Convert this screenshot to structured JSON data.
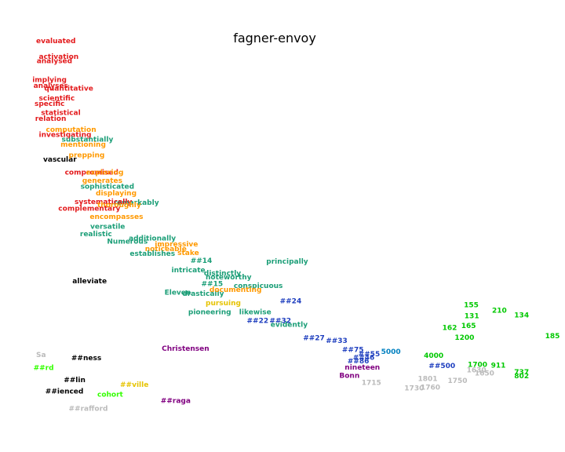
{
  "chart_data": {
    "type": "scatter",
    "title": "fagner-envoy",
    "xlabel": "",
    "ylabel": "",
    "axes_visible": false,
    "grid": false,
    "legend": "none",
    "xlim": [
      0,
      100
    ],
    "ylim": [
      0,
      100
    ],
    "colors": {
      "red": "#e31a1c",
      "orange": "#ff9900",
      "teal": "#1b9e77",
      "blue": "#1f3fbf",
      "black": "#000000",
      "gold": "#e6c300",
      "purple": "#800080",
      "cyan": "#0080c0",
      "gray": "#bbbbbb",
      "green": "#00c800",
      "lime": "#33ff00"
    },
    "points": [
      {
        "label": "evaluated",
        "x": 4.5,
        "y": 99.0,
        "color": "red"
      },
      {
        "label": "activation",
        "x": 5.0,
        "y": 95.0,
        "color": "red"
      },
      {
        "label": "analysed",
        "x": 4.6,
        "y": 93.8,
        "color": "red"
      },
      {
        "label": "implying",
        "x": 3.8,
        "y": 89.0,
        "color": "red"
      },
      {
        "label": "analyses",
        "x": 4.0,
        "y": 87.5,
        "color": "red"
      },
      {
        "label": "quantitative",
        "x": 6.0,
        "y": 86.8,
        "color": "red"
      },
      {
        "label": "scientific",
        "x": 5.0,
        "y": 84.2,
        "color": "red"
      },
      {
        "label": "specific",
        "x": 4.2,
        "y": 82.8,
        "color": "red"
      },
      {
        "label": "statistical",
        "x": 5.4,
        "y": 80.5,
        "color": "red"
      },
      {
        "label": "relation",
        "x": 4.3,
        "y": 79.0,
        "color": "red"
      },
      {
        "label": "computation",
        "x": 6.3,
        "y": 76.2,
        "color": "orange"
      },
      {
        "label": "investigating",
        "x": 5.0,
        "y": 74.8,
        "color": "red"
      },
      {
        "label": "substantially",
        "x": 9.2,
        "y": 73.6,
        "color": "teal"
      },
      {
        "label": "mentioning",
        "x": 9.0,
        "y": 72.3,
        "color": "orange"
      },
      {
        "label": "vascular",
        "x": 5.8,
        "y": 68.5,
        "color": "black"
      },
      {
        "label": "prepping",
        "x": 10.5,
        "y": 69.6,
        "color": "orange"
      },
      {
        "label": "compromised",
        "x": 9.8,
        "y": 65.2,
        "color": "red"
      },
      {
        "label": "exploring",
        "x": 13.7,
        "y": 65.2,
        "color": "orange"
      },
      {
        "label": "generates",
        "x": 13.0,
        "y": 63.0,
        "color": "orange"
      },
      {
        "label": "sophisticated",
        "x": 12.7,
        "y": 61.5,
        "color": "teal"
      },
      {
        "label": "displaying",
        "x": 15.5,
        "y": 59.8,
        "color": "orange"
      },
      {
        "label": "remarkably",
        "x": 18.8,
        "y": 57.4,
        "color": "teal"
      },
      {
        "label": "systematically",
        "x": 11.6,
        "y": 57.6,
        "color": "red"
      },
      {
        "label": "thoroughly",
        "x": 15.8,
        "y": 56.8,
        "color": "orange"
      },
      {
        "label": "complementary",
        "x": 8.6,
        "y": 55.9,
        "color": "red"
      },
      {
        "label": "encompasses",
        "x": 14.4,
        "y": 53.7,
        "color": "orange"
      },
      {
        "label": "versatile",
        "x": 14.5,
        "y": 51.2,
        "color": "teal"
      },
      {
        "label": "realistic",
        "x": 12.6,
        "y": 49.3,
        "color": "teal"
      },
      {
        "label": "additionally",
        "x": 21.6,
        "y": 48.2,
        "color": "teal"
      },
      {
        "label": "Numerous",
        "x": 17.6,
        "y": 47.4,
        "color": "teal"
      },
      {
        "label": "impressive",
        "x": 26.4,
        "y": 46.7,
        "color": "orange"
      },
      {
        "label": "noticeable",
        "x": 24.6,
        "y": 45.5,
        "color": "orange"
      },
      {
        "label": "establishes",
        "x": 21.8,
        "y": 44.2,
        "color": "teal"
      },
      {
        "label": "stake",
        "x": 30.6,
        "y": 44.4,
        "color": "orange"
      },
      {
        "label": "principally",
        "x": 47.0,
        "y": 42.2,
        "color": "teal"
      },
      {
        "label": "##14",
        "x": 33.0,
        "y": 42.4,
        "color": "teal"
      },
      {
        "label": "intricate",
        "x": 29.5,
        "y": 40.0,
        "color": "teal"
      },
      {
        "label": "distinctly",
        "x": 35.5,
        "y": 39.2,
        "color": "teal"
      },
      {
        "label": "noteworthy",
        "x": 35.8,
        "y": 38.2,
        "color": "teal"
      },
      {
        "label": "conspicuous",
        "x": 41.0,
        "y": 36.0,
        "color": "teal"
      },
      {
        "label": "##15",
        "x": 35.0,
        "y": 36.5,
        "color": "teal"
      },
      {
        "label": "drastically",
        "x": 31.5,
        "y": 33.9,
        "color": "teal"
      },
      {
        "label": "documenting",
        "x": 36.5,
        "y": 34.9,
        "color": "orange"
      },
      {
        "label": "Eleven",
        "x": 28.2,
        "y": 34.2,
        "color": "teal"
      },
      {
        "label": "##24",
        "x": 49.5,
        "y": 32.0,
        "color": "blue"
      },
      {
        "label": "pursuing",
        "x": 35.8,
        "y": 31.5,
        "color": "gold"
      },
      {
        "label": "alleviate",
        "x": 11.2,
        "y": 37.2,
        "color": "black"
      },
      {
        "label": "pioneering",
        "x": 32.6,
        "y": 29.2,
        "color": "teal"
      },
      {
        "label": "likewise",
        "x": 42.0,
        "y": 29.2,
        "color": "teal"
      },
      {
        "label": "##22",
        "x": 43.4,
        "y": 27.0,
        "color": "blue"
      },
      {
        "label": "##32",
        "x": 47.6,
        "y": 27.0,
        "color": "blue"
      },
      {
        "label": "evidently",
        "x": 47.8,
        "y": 26.0,
        "color": "teal"
      },
      {
        "label": "##27",
        "x": 53.8,
        "y": 22.5,
        "color": "blue"
      },
      {
        "label": "##33",
        "x": 58.0,
        "y": 21.8,
        "color": "blue"
      },
      {
        "label": "##75",
        "x": 61.0,
        "y": 19.5,
        "color": "blue"
      },
      {
        "label": "##55",
        "x": 64.0,
        "y": 18.4,
        "color": "blue"
      },
      {
        "label": "##46",
        "x": 63.0,
        "y": 17.5,
        "color": "blue"
      },
      {
        "label": "5000",
        "x": 68.2,
        "y": 19.0,
        "color": "cyan"
      },
      {
        "label": "4000",
        "x": 76.1,
        "y": 18.0,
        "color": "green"
      },
      {
        "label": "##500",
        "x": 77.0,
        "y": 15.4,
        "color": "blue"
      },
      {
        "label": "nineteen",
        "x": 61.5,
        "y": 15.0,
        "color": "purple"
      },
      {
        "label": "Christensen",
        "x": 27.7,
        "y": 19.8,
        "color": "purple"
      },
      {
        "label": "Bonn",
        "x": 60.5,
        "y": 12.8,
        "color": "purple"
      },
      {
        "label": "1715",
        "x": 64.6,
        "y": 11.0,
        "color": "gray"
      },
      {
        "label": "1801",
        "x": 75.0,
        "y": 12.0,
        "color": "gray"
      },
      {
        "label": "1750",
        "x": 80.5,
        "y": 11.5,
        "color": "gray"
      },
      {
        "label": "1730",
        "x": 72.5,
        "y": 9.6,
        "color": "gray"
      },
      {
        "label": "1760",
        "x": 75.5,
        "y": 9.8,
        "color": "gray"
      },
      {
        "label": "1700",
        "x": 84.2,
        "y": 15.7,
        "color": "green"
      },
      {
        "label": "1650",
        "x": 85.5,
        "y": 13.4,
        "color": "gray"
      },
      {
        "label": "911",
        "x": 88.5,
        "y": 15.5,
        "color": "green"
      },
      {
        "label": "737",
        "x": 92.8,
        "y": 13.7,
        "color": "green"
      },
      {
        "label": "802",
        "x": 92.8,
        "y": 12.7,
        "color": "green"
      },
      {
        "label": "155",
        "x": 83.5,
        "y": 31.0,
        "color": "green"
      },
      {
        "label": "131",
        "x": 83.6,
        "y": 28.2,
        "color": "green"
      },
      {
        "label": "210",
        "x": 88.7,
        "y": 29.6,
        "color": "green"
      },
      {
        "label": "134",
        "x": 92.8,
        "y": 28.4,
        "color": "green"
      },
      {
        "label": "162",
        "x": 79.5,
        "y": 25.2,
        "color": "green"
      },
      {
        "label": "165",
        "x": 83.0,
        "y": 25.7,
        "color": "green"
      },
      {
        "label": "185",
        "x": 98.5,
        "y": 23.0,
        "color": "green"
      },
      {
        "label": "1200",
        "x": 81.8,
        "y": 22.6,
        "color": "green"
      },
      {
        "label": "1630",
        "x": 84.0,
        "y": 14.2,
        "color": "gray"
      },
      {
        "label": "##86",
        "x": 62.0,
        "y": 16.6,
        "color": "blue"
      },
      {
        "label": "##raga",
        "x": 27.5,
        "y": 6.4,
        "color": "purple"
      },
      {
        "label": "##rafford",
        "x": 10.5,
        "y": 4.3,
        "color": "gray"
      },
      {
        "label": "##ienced",
        "x": 6.2,
        "y": 8.8,
        "color": "black"
      },
      {
        "label": "##ness",
        "x": 11.0,
        "y": 17.4,
        "color": "black"
      },
      {
        "label": "Sa",
        "x": 4.5,
        "y": 18.2,
        "color": "gray"
      },
      {
        "label": "##rd",
        "x": 4.0,
        "y": 14.8,
        "color": "lime"
      },
      {
        "label": "cohort",
        "x": 15.8,
        "y": 8.0,
        "color": "lime"
      },
      {
        "label": "##lin",
        "x": 9.6,
        "y": 11.7,
        "color": "black"
      },
      {
        "label": "##ville",
        "x": 20.0,
        "y": 10.5,
        "color": "gold"
      }
    ]
  }
}
